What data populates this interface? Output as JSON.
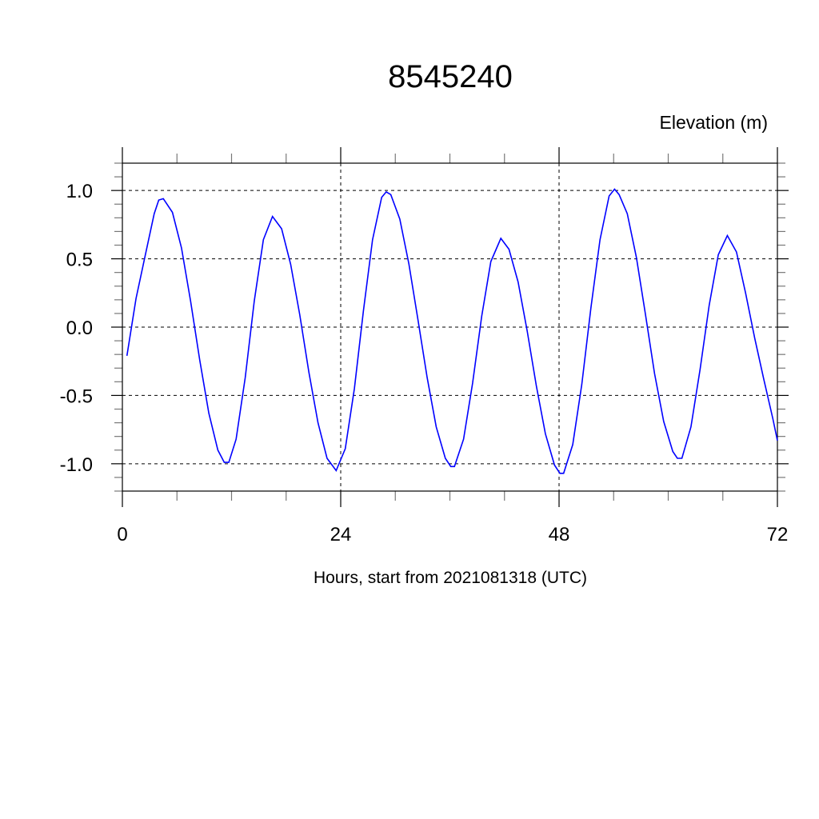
{
  "chart_data": {
    "type": "line",
    "title": "8545240",
    "ylabel": "Elevation (m)",
    "xlabel": "Hours, start from 2021081318 (UTC)",
    "xlim": [
      0,
      72
    ],
    "ylim": [
      -1.2,
      1.2
    ],
    "x_ticks": [
      0,
      24,
      48,
      72
    ],
    "x_tick_labels": [
      "0",
      "24",
      "48",
      "72"
    ],
    "x_minor_step": 6,
    "y_ticks": [
      1.0,
      0.5,
      0.0,
      -0.5,
      -1.0
    ],
    "y_tick_labels": [
      "1.0",
      "0.5",
      "0.0",
      "-0.5",
      "-1.0"
    ],
    "y_minor_step": 0.1,
    "grid": "dashed at major ticks",
    "line_color": "#0000ff",
    "series": [
      {
        "x": [
          0.5,
          1.5,
          2.5,
          3.5,
          4,
          4.5,
          5.5,
          6.5,
          7.5,
          8.5,
          9.5,
          10.5,
          11.2,
          11.7,
          12.5,
          13.5,
          14.5,
          15.5,
          16.5,
          17.5,
          18.5,
          19.5,
          20.5,
          21.5,
          22.5,
          23.5,
          24.5,
          25.5,
          26.5,
          27.5,
          28.5,
          29,
          29.5,
          30.5,
          31.5,
          32.5,
          33.5,
          34.5,
          35.5,
          36.1,
          36.5,
          37.5,
          38.5,
          39.5,
          40.5,
          41.6,
          42.5,
          43.5,
          44.5,
          45.5,
          46.5,
          47.5,
          48.1,
          48.5,
          49.5,
          50.5,
          51.5,
          52.5,
          53.5,
          54.1,
          54.6,
          55.5,
          56.5,
          57.5,
          58.5,
          59.5,
          60.5,
          61,
          61.5,
          62.5,
          63.5,
          64.5,
          65.5,
          66.5,
          67.5,
          68.5,
          69.5,
          70.5,
          71.5,
          72
        ],
        "y": [
          -0.21,
          0.21,
          0.52,
          0.83,
          0.93,
          0.94,
          0.84,
          0.58,
          0.19,
          -0.24,
          -0.63,
          -0.9,
          -0.99,
          -0.99,
          -0.82,
          -0.37,
          0.19,
          0.64,
          0.81,
          0.72,
          0.46,
          0.09,
          -0.33,
          -0.7,
          -0.96,
          -1.05,
          -0.89,
          -0.45,
          0.12,
          0.64,
          0.95,
          0.99,
          0.97,
          0.79,
          0.46,
          0.05,
          -0.37,
          -0.73,
          -0.96,
          -1.02,
          -1.02,
          -0.82,
          -0.41,
          0.08,
          0.48,
          0.65,
          0.57,
          0.33,
          -0.03,
          -0.43,
          -0.78,
          -1.01,
          -1.07,
          -1.07,
          -0.86,
          -0.42,
          0.14,
          0.64,
          0.96,
          1.01,
          0.97,
          0.83,
          0.51,
          0.09,
          -0.34,
          -0.69,
          -0.91,
          -0.96,
          -0.96,
          -0.73,
          -0.31,
          0.16,
          0.53,
          0.67,
          0.55,
          0.25,
          -0.08,
          -0.38,
          -0.67,
          -0.83
        ]
      }
    ]
  }
}
